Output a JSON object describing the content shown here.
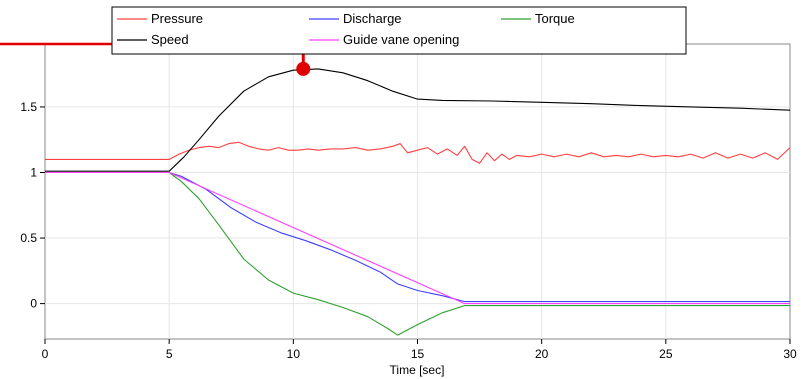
{
  "chart_data": {
    "type": "line",
    "title": "",
    "xlabel": "Time  [sec]",
    "ylabel": "",
    "xlim": [
      0,
      30
    ],
    "ylim": [
      -0.27,
      1.98
    ],
    "x_ticks": [
      0,
      5,
      10,
      15,
      20,
      25,
      30
    ],
    "x_tick_labels": [
      "0",
      "5",
      "10",
      "15",
      "20",
      "25",
      "30"
    ],
    "y_ticks": [
      0,
      0.5,
      1,
      1.5
    ],
    "y_tick_labels": [
      "0",
      "0.5",
      "1",
      "1.5"
    ],
    "grid": true,
    "legend_position": "top",
    "series": [
      {
        "name": "Pressure",
        "color": "#ff4040",
        "points": [
          [
            0,
            1.1
          ],
          [
            5,
            1.1
          ],
          [
            5.4,
            1.14
          ],
          [
            5.8,
            1.17
          ],
          [
            6.2,
            1.19
          ],
          [
            6.6,
            1.2
          ],
          [
            7.0,
            1.19
          ],
          [
            7.4,
            1.22
          ],
          [
            7.8,
            1.23
          ],
          [
            8.2,
            1.2
          ],
          [
            8.6,
            1.18
          ],
          [
            9.0,
            1.17
          ],
          [
            9.4,
            1.19
          ],
          [
            9.8,
            1.17
          ],
          [
            10.2,
            1.17
          ],
          [
            10.6,
            1.18
          ],
          [
            11.0,
            1.17
          ],
          [
            11.5,
            1.18
          ],
          [
            12.0,
            1.18
          ],
          [
            12.5,
            1.19
          ],
          [
            13.0,
            1.17
          ],
          [
            13.5,
            1.18
          ],
          [
            14.0,
            1.2
          ],
          [
            14.3,
            1.22
          ],
          [
            14.6,
            1.15
          ],
          [
            15.0,
            1.17
          ],
          [
            15.4,
            1.19
          ],
          [
            15.8,
            1.14
          ],
          [
            16.2,
            1.18
          ],
          [
            16.6,
            1.13
          ],
          [
            16.9,
            1.2
          ],
          [
            17.2,
            1.1
          ],
          [
            17.5,
            1.07
          ],
          [
            17.8,
            1.15
          ],
          [
            18.1,
            1.09
          ],
          [
            18.4,
            1.14
          ],
          [
            18.7,
            1.1
          ],
          [
            19.0,
            1.13
          ],
          [
            19.5,
            1.12
          ],
          [
            20.0,
            1.14
          ],
          [
            20.5,
            1.12
          ],
          [
            21.0,
            1.14
          ],
          [
            21.5,
            1.12
          ],
          [
            22.0,
            1.15
          ],
          [
            22.5,
            1.12
          ],
          [
            23.0,
            1.13
          ],
          [
            23.5,
            1.12
          ],
          [
            24.0,
            1.14
          ],
          [
            24.5,
            1.12
          ],
          [
            25.0,
            1.13
          ],
          [
            25.5,
            1.12
          ],
          [
            26.0,
            1.14
          ],
          [
            26.5,
            1.11
          ],
          [
            27.0,
            1.15
          ],
          [
            27.5,
            1.11
          ],
          [
            28.0,
            1.14
          ],
          [
            28.5,
            1.11
          ],
          [
            29.0,
            1.15
          ],
          [
            29.5,
            1.1
          ],
          [
            30.0,
            1.19
          ]
        ]
      },
      {
        "name": "Discharge",
        "color": "#4040ff",
        "points": [
          [
            0,
            1.0
          ],
          [
            5,
            1.0
          ],
          [
            5.5,
            0.97
          ],
          [
            6.5,
            0.87
          ],
          [
            7.5,
            0.73
          ],
          [
            8.5,
            0.62
          ],
          [
            9.5,
            0.54
          ],
          [
            10.5,
            0.48
          ],
          [
            11.5,
            0.41
          ],
          [
            12.5,
            0.33
          ],
          [
            13.5,
            0.24
          ],
          [
            14.2,
            0.15
          ],
          [
            15.0,
            0.1
          ],
          [
            16.0,
            0.06
          ],
          [
            16.9,
            0.015
          ],
          [
            30.0,
            0.015
          ]
        ]
      },
      {
        "name": "Torque",
        "color": "#30a030",
        "points": [
          [
            0,
            1.0
          ],
          [
            5,
            1.0
          ],
          [
            5.5,
            0.93
          ],
          [
            6.2,
            0.8
          ],
          [
            7.0,
            0.6
          ],
          [
            8.0,
            0.34
          ],
          [
            9.0,
            0.18
          ],
          [
            10.0,
            0.08
          ],
          [
            11.0,
            0.03
          ],
          [
            12.0,
            -0.03
          ],
          [
            13.0,
            -0.1
          ],
          [
            13.8,
            -0.19
          ],
          [
            14.2,
            -0.24
          ],
          [
            15.0,
            -0.16
          ],
          [
            16.0,
            -0.07
          ],
          [
            16.9,
            -0.015
          ],
          [
            30.0,
            -0.015
          ]
        ]
      },
      {
        "name": "Speed",
        "color": "#000000",
        "points": [
          [
            0,
            1.01
          ],
          [
            5,
            1.01
          ],
          [
            5.6,
            1.12
          ],
          [
            6.2,
            1.25
          ],
          [
            7.0,
            1.43
          ],
          [
            8.0,
            1.62
          ],
          [
            9.0,
            1.73
          ],
          [
            10.0,
            1.78
          ],
          [
            11.0,
            1.79
          ],
          [
            12.0,
            1.76
          ],
          [
            13.0,
            1.7
          ],
          [
            14.0,
            1.62
          ],
          [
            15.0,
            1.56
          ],
          [
            16.0,
            1.55
          ],
          [
            18.0,
            1.545
          ],
          [
            20.0,
            1.535
          ],
          [
            22.0,
            1.525
          ],
          [
            24.0,
            1.51
          ],
          [
            26.0,
            1.5
          ],
          [
            28.0,
            1.49
          ],
          [
            30.0,
            1.475
          ]
        ]
      },
      {
        "name": "Guide vane opening",
        "color": "#ff40ff",
        "points": [
          [
            0,
            1.0
          ],
          [
            5,
            1.0
          ],
          [
            16.9,
            0.0
          ],
          [
            30,
            0.0
          ]
        ]
      }
    ],
    "annotation": {
      "color": "#e00000",
      "line_y": 1.98,
      "line_x_end": 10.4,
      "marker_x": 10.4,
      "marker_y_top": 1.98,
      "marker_y_bottom": 1.79
    }
  }
}
